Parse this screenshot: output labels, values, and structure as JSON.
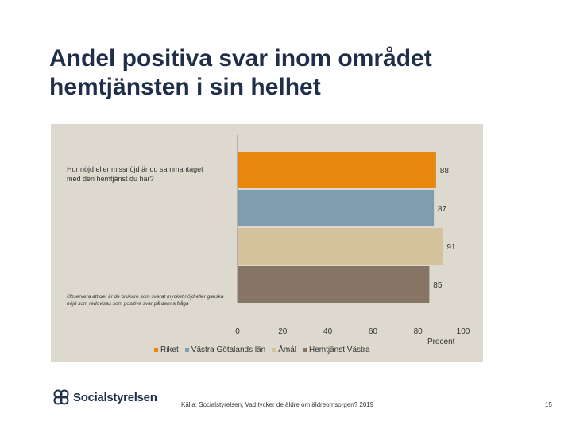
{
  "slide": {
    "title_line1": "Andel positiva svar inom området",
    "title_line2": "hemtjänsten i sin helhet",
    "question": "Hur nöjd eller missnöjd är du sammantaget med den hemtjänst du har?",
    "note": "Observera att det är de brukare som svarat mycket nöjd eller ganska nöjd som redovisas som positiva svar på denna fråga",
    "source": "Källa: Socialstyrelsen, Vad tycker de äldre om äldreomsorgen? 2019",
    "page_number": "15",
    "logo_text": "Socialstyrelsen"
  },
  "chart_data": {
    "type": "bar",
    "orientation": "horizontal",
    "series": [
      {
        "name": "Riket",
        "value": 88,
        "color": "#e8870e"
      },
      {
        "name": "Västra Götalands län",
        "value": 87,
        "color": "#7f9daf"
      },
      {
        "name": "Åmål",
        "value": 91,
        "color": "#d3c29b"
      },
      {
        "name": "Hemtjänst Västra",
        "value": 85,
        "color": "#867565"
      }
    ],
    "xlim": [
      0,
      100
    ],
    "xticks": [
      "0",
      "20",
      "40",
      "60",
      "80",
      "100"
    ],
    "xlabel": "Procent",
    "legend_position": "bottom",
    "grid": false
  }
}
